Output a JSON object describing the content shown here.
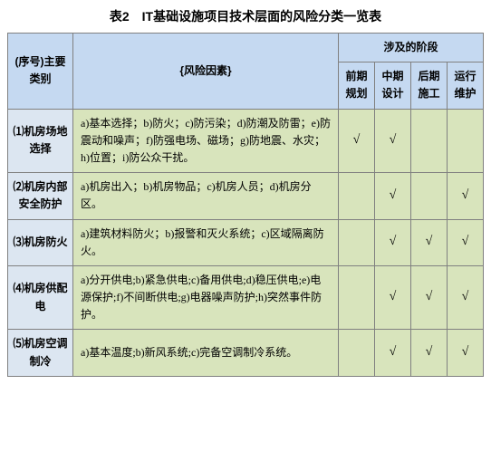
{
  "title": "表2　IT基础设施项目技术层面的风险分类一览表",
  "headers": {
    "category": "(序号)主要类别",
    "factor": "{风险因素}",
    "phase_group": "涉及的阶段",
    "phases": [
      "前期规划",
      "中期设计",
      "后期施工",
      "运行维护"
    ]
  },
  "rows": [
    {
      "cat": "⑴机房场地选择",
      "factor": "a)基本选择；b)防火；c)防污染；d)防潮及防雷；e)防震动和噪声；f)防强电场、磁场；g)防地震、水灾；h)位置；i)防公众干扰。",
      "checks": [
        "√",
        "√",
        "",
        ""
      ]
    },
    {
      "cat": "⑵机房内部安全防护",
      "factor": "a)机房出入；b)机房物品；c)机房人员；d)机房分区。",
      "checks": [
        "",
        "√",
        "",
        "√"
      ]
    },
    {
      "cat": "⑶机房防火",
      "factor": "a)建筑材料防火；b)报警和灭火系统；c)区域隔离防火。",
      "checks": [
        "",
        "√",
        "√",
        "√"
      ]
    },
    {
      "cat": "⑷机房供配电",
      "factor": "a)分开供电;b)紧急供电;c)备用供电;d)稳压供电;e)电源保护;f)不间断供电;g)电器噪声防护;h)突然事件防护。",
      "checks": [
        "",
        "√",
        "√",
        "√"
      ]
    },
    {
      "cat": "⑸机房空调制冷",
      "factor": "a)基本温度;b)新风系统;c)完备空调制冷系统。",
      "checks": [
        "",
        "√",
        "√",
        "√"
      ]
    }
  ]
}
